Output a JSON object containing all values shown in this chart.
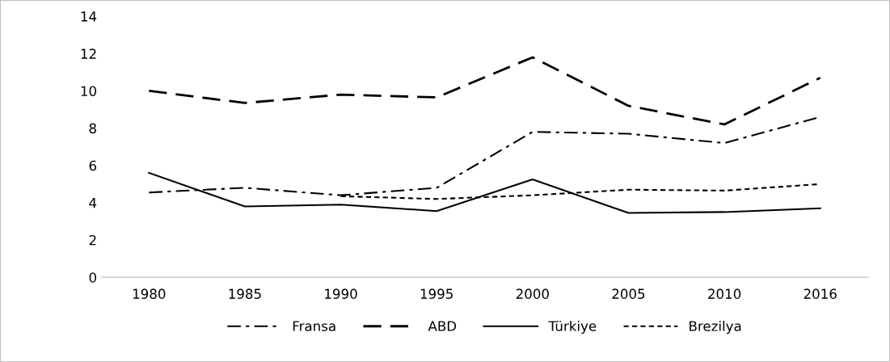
{
  "chart_data": {
    "type": "line",
    "categories": [
      "1980",
      "1985",
      "1990",
      "1995",
      "2000",
      "2005",
      "2010",
      "2016"
    ],
    "series": [
      {
        "name": "Fransa",
        "color": "#000000",
        "line_style": "dashdot",
        "values": [
          4.55,
          4.8,
          4.4,
          4.8,
          7.8,
          7.7,
          7.2,
          8.6
        ]
      },
      {
        "name": "ABD",
        "color": "#000000",
        "line_style": "dashed",
        "values": [
          10.0,
          9.35,
          9.8,
          9.65,
          11.8,
          9.2,
          8.2,
          10.7
        ]
      },
      {
        "name": "Türkiye",
        "color": "#000000",
        "line_style": "solid",
        "values": [
          5.6,
          3.8,
          3.9,
          3.55,
          5.25,
          3.45,
          3.5,
          3.7
        ]
      },
      {
        "name": "Brezilya",
        "color": "#000000",
        "line_style": "dotted",
        "values": [
          null,
          null,
          4.35,
          4.2,
          4.4,
          4.7,
          4.65,
          5.0
        ]
      }
    ],
    "ylim": [
      0,
      14
    ],
    "yticks": [
      0,
      2,
      4,
      6,
      8,
      10,
      12,
      14
    ],
    "grid": false,
    "legend": "bottom",
    "marker": "none"
  }
}
